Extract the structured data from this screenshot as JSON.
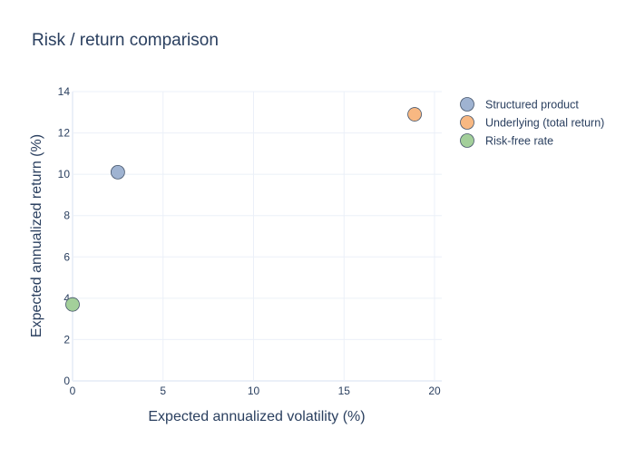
{
  "chart_data": {
    "type": "scatter",
    "title": "Risk / return comparison",
    "xlabel": "Expected annualized volatility (%)",
    "ylabel": "Expected annualized return (%)",
    "xlim": [
      0,
      20.4
    ],
    "ylim": [
      0,
      14
    ],
    "xticks": [
      0,
      5,
      10,
      15,
      20
    ],
    "yticks": [
      0,
      2,
      4,
      6,
      8,
      10,
      12,
      14
    ],
    "grid": true,
    "legend_position": "top-right",
    "series": [
      {
        "name": "Structured product",
        "x": [
          2.5
        ],
        "y": [
          10.1
        ],
        "color": "#9fb3d1"
      },
      {
        "name": "Underlying (total return)",
        "x": [
          18.9
        ],
        "y": [
          12.9
        ],
        "color": "#f8b882"
      },
      {
        "name": "Risk-free rate",
        "x": [
          0.0
        ],
        "y": [
          3.7
        ],
        "color": "#a3cf9a"
      }
    ]
  }
}
